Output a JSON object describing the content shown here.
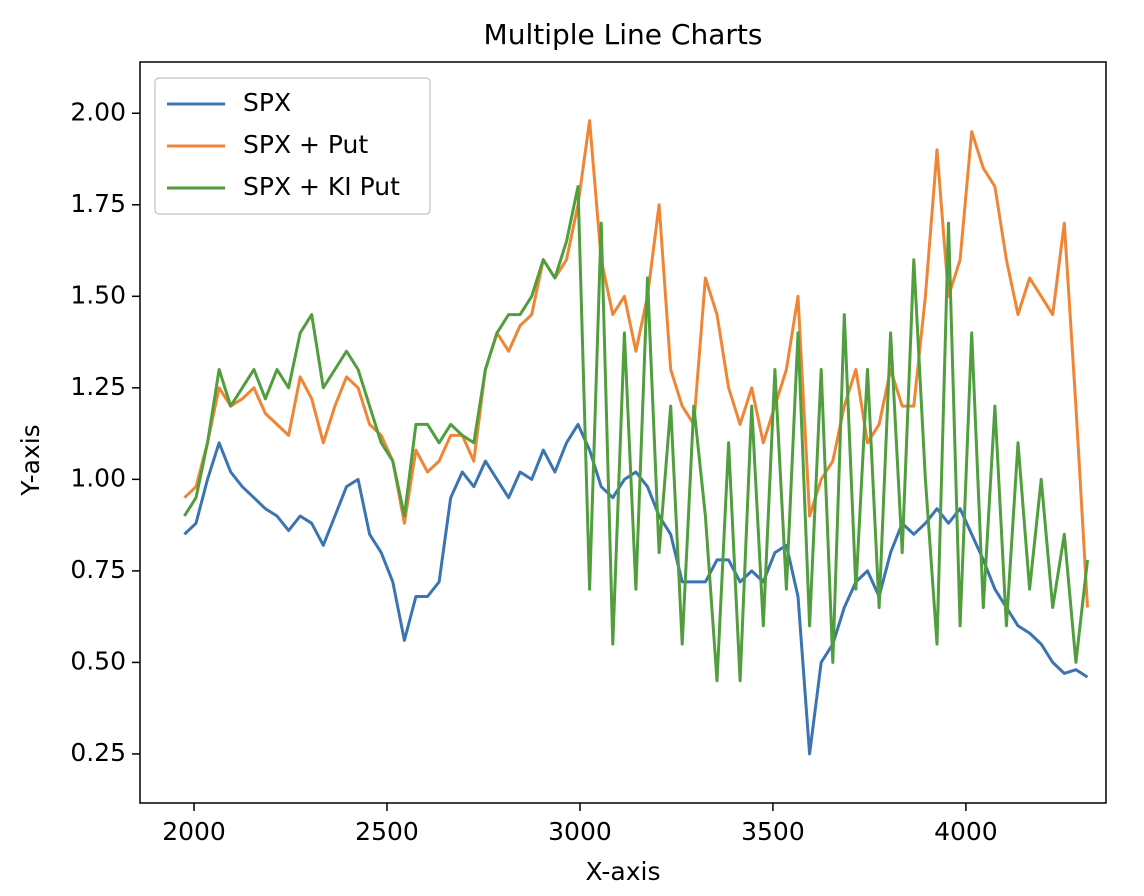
{
  "chart_data": {
    "type": "line",
    "title": "Multiple Line Charts",
    "x_label": "X-axis",
    "y_label": "Y-axis",
    "x": [
      1975,
      2005,
      2035,
      2065,
      2095,
      2125,
      2155,
      2185,
      2215,
      2245,
      2275,
      2305,
      2335,
      2365,
      2395,
      2425,
      2455,
      2485,
      2515,
      2545,
      2575,
      2605,
      2635,
      2665,
      2695,
      2725,
      2755,
      2785,
      2815,
      2845,
      2875,
      2905,
      2935,
      2965,
      2995,
      3025,
      3055,
      3085,
      3115,
      3145,
      3175,
      3205,
      3235,
      3265,
      3295,
      3325,
      3355,
      3385,
      3415,
      3445,
      3475,
      3505,
      3535,
      3565,
      3595,
      3625,
      3655,
      3685,
      3715,
      3745,
      3775,
      3805,
      3835,
      3865,
      3895,
      3925,
      3955,
      3985,
      4015,
      4045,
      4075,
      4105,
      4135,
      4165,
      4195,
      4225,
      4255,
      4285,
      4315
    ],
    "series": [
      {
        "name": "SPX",
        "color": "#3b75b1",
        "values": [
          0.85,
          0.88,
          1.0,
          1.1,
          1.02,
          0.98,
          0.95,
          0.92,
          0.9,
          0.86,
          0.9,
          0.88,
          0.82,
          0.9,
          0.98,
          1.0,
          0.85,
          0.8,
          0.72,
          0.56,
          0.68,
          0.68,
          0.72,
          0.95,
          1.02,
          0.98,
          1.05,
          1.0,
          0.95,
          1.02,
          1.0,
          1.08,
          1.02,
          1.1,
          1.15,
          1.08,
          0.98,
          0.95,
          1.0,
          1.02,
          0.98,
          0.9,
          0.85,
          0.72,
          0.72,
          0.72,
          0.78,
          0.78,
          0.72,
          0.75,
          0.72,
          0.8,
          0.82,
          0.68,
          0.25,
          0.5,
          0.55,
          0.65,
          0.72,
          0.75,
          0.68,
          0.8,
          0.88,
          0.85,
          0.88,
          0.92,
          0.88,
          0.92,
          0.85,
          0.78,
          0.7,
          0.65,
          0.6,
          0.58,
          0.55,
          0.5,
          0.47,
          0.48,
          0.46
        ]
      },
      {
        "name": "SPX + Put",
        "color": "#ef8636",
        "values": [
          0.95,
          0.98,
          1.1,
          1.25,
          1.2,
          1.22,
          1.25,
          1.18,
          1.15,
          1.12,
          1.28,
          1.22,
          1.1,
          1.2,
          1.28,
          1.25,
          1.15,
          1.12,
          1.05,
          0.88,
          1.08,
          1.02,
          1.05,
          1.12,
          1.12,
          1.05,
          1.3,
          1.4,
          1.35,
          1.42,
          1.45,
          1.6,
          1.55,
          1.6,
          1.75,
          1.98,
          1.6,
          1.45,
          1.5,
          1.35,
          1.5,
          1.75,
          1.3,
          1.2,
          1.15,
          1.55,
          1.45,
          1.25,
          1.15,
          1.25,
          1.1,
          1.2,
          1.3,
          1.5,
          0.9,
          1.0,
          1.05,
          1.2,
          1.3,
          1.1,
          1.15,
          1.3,
          1.2,
          1.2,
          1.5,
          1.9,
          1.5,
          1.6,
          1.95,
          1.85,
          1.8,
          1.6,
          1.45,
          1.55,
          1.5,
          1.45,
          1.7,
          1.2,
          0.65
        ]
      },
      {
        "name": "SPX + KI Put",
        "color": "#519e3e",
        "values": [
          0.9,
          0.95,
          1.1,
          1.3,
          1.2,
          1.25,
          1.3,
          1.22,
          1.3,
          1.25,
          1.4,
          1.45,
          1.25,
          1.3,
          1.35,
          1.3,
          1.2,
          1.1,
          1.05,
          0.9,
          1.15,
          1.15,
          1.1,
          1.15,
          1.12,
          1.1,
          1.3,
          1.4,
          1.45,
          1.45,
          1.5,
          1.6,
          1.55,
          1.65,
          1.8,
          0.7,
          1.7,
          0.55,
          1.4,
          0.7,
          1.55,
          0.8,
          1.2,
          0.55,
          1.2,
          0.9,
          0.45,
          1.1,
          0.45,
          1.2,
          0.6,
          1.3,
          0.7,
          1.4,
          0.6,
          1.3,
          0.5,
          1.45,
          0.7,
          1.3,
          0.65,
          1.4,
          0.8,
          1.6,
          1.0,
          0.55,
          1.7,
          0.6,
          1.4,
          0.65,
          1.2,
          0.6,
          1.1,
          0.7,
          1.0,
          0.65,
          0.85,
          0.5,
          0.78
        ]
      }
    ],
    "xlim": [
      1860,
      4363
    ],
    "xticks": [
      2000,
      2500,
      3000,
      3500,
      4000
    ],
    "ylim": [
      0.116,
      2.14
    ],
    "yticks": [
      0.25,
      {
        "value": 0.5,
        "label": "0.50"
      },
      0.75,
      {
        "value": 1.0,
        "label": "1.00"
      },
      1.25,
      {
        "value": 1.5,
        "label": "1.50"
      },
      1.75,
      {
        "value": 2.0,
        "label": "2.00"
      }
    ],
    "legend": "upper left",
    "grid": false
  }
}
